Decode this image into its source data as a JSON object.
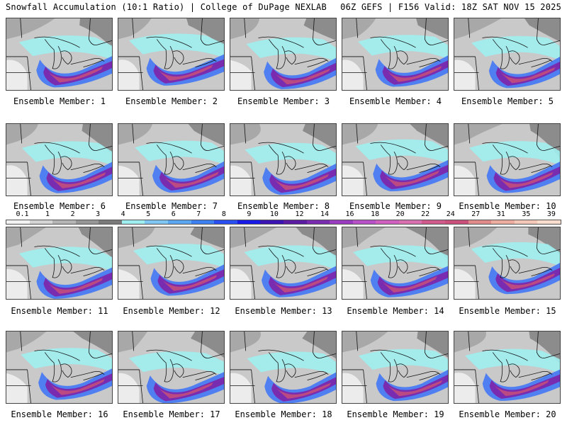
{
  "header": {
    "title_left": "Snowfall Accumulation (10:1 Ratio) | College of DuPage NEXLAB",
    "title_right": "06Z GEFS | F156 Valid: 18Z SAT NOV 15 2025"
  },
  "members": [
    {
      "label": "Ensemble Member: 1"
    },
    {
      "label": "Ensemble Member: 2"
    },
    {
      "label": "Ensemble Member: 3"
    },
    {
      "label": "Ensemble Member: 4"
    },
    {
      "label": "Ensemble Member: 5"
    },
    {
      "label": "Ensemble Member: 6"
    },
    {
      "label": "Ensemble Member: 7"
    },
    {
      "label": "Ensemble Member: 8"
    },
    {
      "label": "Ensemble Member: 9"
    },
    {
      "label": "Ensemble Member: 10"
    },
    {
      "label": "Ensemble Member: 11"
    },
    {
      "label": "Ensemble Member: 12"
    },
    {
      "label": "Ensemble Member: 13"
    },
    {
      "label": "Ensemble Member: 14"
    },
    {
      "label": "Ensemble Member: 15"
    },
    {
      "label": "Ensemble Member: 16"
    },
    {
      "label": "Ensemble Member: 17"
    },
    {
      "label": "Ensemble Member: 18"
    },
    {
      "label": "Ensemble Member: 19"
    },
    {
      "label": "Ensemble Member: 20"
    }
  ],
  "colorbar": {
    "labels": [
      "0.1",
      "1",
      "2",
      "3",
      "4",
      "5",
      "6",
      "7",
      "8",
      "9",
      "10",
      "12",
      "14",
      "16",
      "18",
      "20",
      "22",
      "24",
      "27",
      "31",
      "35",
      "39"
    ],
    "colors": [
      "#f2f2f2",
      "#d4d4d4",
      "#b4b4b4",
      "#969696",
      "#7a7a7a",
      "#9eeef0",
      "#7fc7f2",
      "#5aa6f0",
      "#3c7ff0",
      "#2a4ff0",
      "#1a1ae6",
      "#3c14b4",
      "#5a1ca0",
      "#7a2cb0",
      "#9a3cc0",
      "#b850c8",
      "#d060c0",
      "#d870b0",
      "#d05a8c",
      "#c8507a",
      "#e08a8a",
      "#ecaca0",
      "#f4c8b8",
      "#f8dccc"
    ]
  }
}
